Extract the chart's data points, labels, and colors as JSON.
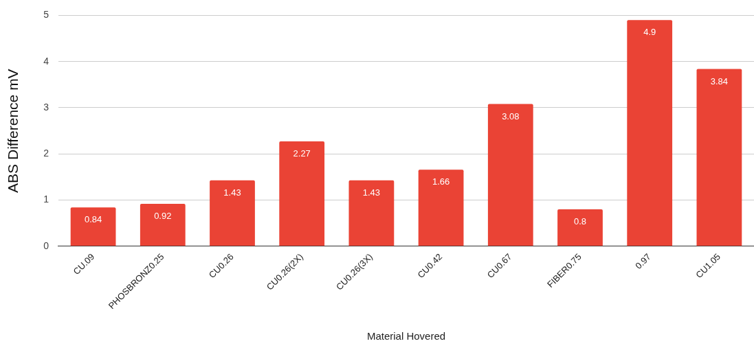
{
  "chart_data": {
    "type": "bar",
    "xlabel": "Material Hovered",
    "ylabel": "ABS Difference mV",
    "categories": [
      "CU.09",
      "PHOSBRONZ0.25",
      "CU0.26",
      "CU0.26(2X)",
      "CU0.26(3X)",
      "CU0.42",
      "CU0.67",
      "FIBER0.75",
      "0.97",
      "CU1.05"
    ],
    "values": [
      0.84,
      0.92,
      1.43,
      2.27,
      1.43,
      1.66,
      3.08,
      0.8,
      4.9,
      3.84
    ],
    "color": "#ea4335",
    "ylim": [
      0,
      5
    ],
    "yticks": [
      0,
      1,
      2,
      3,
      4,
      5
    ],
    "grid": "y",
    "legend": false,
    "data_labels": true
  }
}
